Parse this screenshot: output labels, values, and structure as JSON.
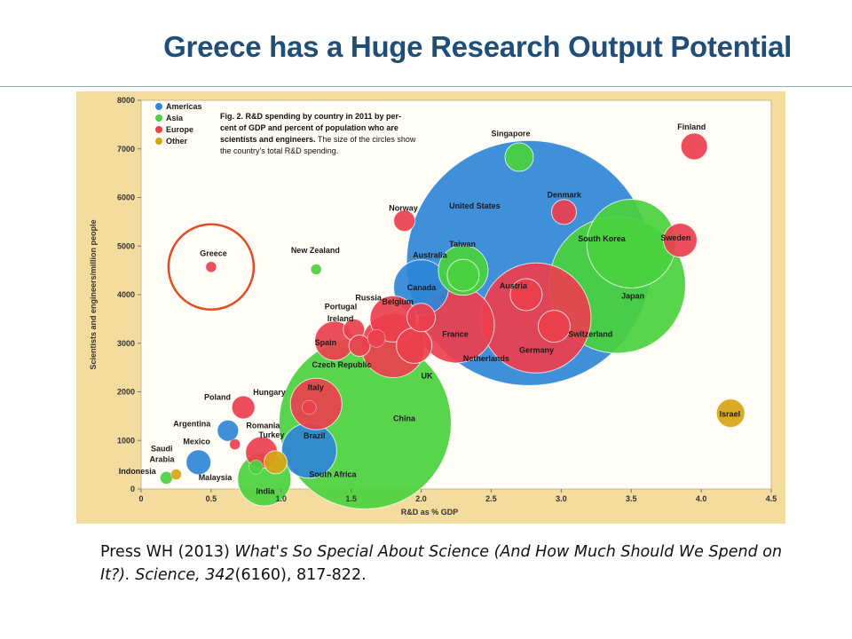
{
  "slide": {
    "title": "Greece has a Huge Research Output Potential"
  },
  "citation": {
    "authors": "Press WH (2013) ",
    "title_line1": "What's So Special About Science (And How Much Should We Spend on",
    "title_line2": "It?). Science, ",
    "volume": "342",
    "rest": "(6160), 817-822."
  },
  "colors": {
    "Americas": "#2f86d6",
    "Asia": "#4ad13e",
    "Europe": "#eb3f4d",
    "Other": "#d8a412",
    "highlight": "#e34b22"
  },
  "chart_data": {
    "type": "scatter",
    "note": {
      "line1_bold": "Fig. 2. R&D spending by country in 2011 by per-",
      "line2_bold": "cent of GDP and percent of population who are",
      "line3_bold": "scientists and engineers.",
      "line3_rest": " The size of the circles show",
      "line4": "the country's total R&D spending."
    },
    "xlabel": "R&D as % GDP",
    "ylabel": "Scientists and engineers/million people",
    "xlim": [
      0,
      4.5
    ],
    "ylim": [
      0,
      8000
    ],
    "xticks": [
      "0",
      "0.5",
      "1.0",
      "1.5",
      "2.0",
      "2.5",
      "3.0",
      "3.5",
      "4.0",
      "4.5"
    ],
    "yticks": [
      "0",
      "1000",
      "2000",
      "3000",
      "4000",
      "5000",
      "6000",
      "7000",
      "8000"
    ],
    "legend_position": "top-left",
    "legend": [
      "Americas",
      "Asia",
      "Europe",
      "Other"
    ],
    "highlight": {
      "label": "Greece",
      "x": 0.5,
      "y": 4570
    },
    "points": [
      {
        "name": "United States",
        "region": "Americas",
        "x": 2.77,
        "y": 4650,
        "size": 138
      },
      {
        "name": "China",
        "region": "Asia",
        "x": 1.6,
        "y": 1360,
        "size": 97
      },
      {
        "name": "Japan",
        "region": "Asia",
        "x": 3.4,
        "y": 4200,
        "size": 77
      },
      {
        "name": "Germany",
        "region": "Europe",
        "x": 2.82,
        "y": 3520,
        "size": 62
      },
      {
        "name": "South Korea",
        "region": "Asia",
        "x": 3.5,
        "y": 5050,
        "size": 50
      },
      {
        "name": "France",
        "region": "Europe",
        "x": 2.25,
        "y": 3380,
        "size": 43
      },
      {
        "name": "UK",
        "region": "Europe",
        "x": 1.8,
        "y": 2950,
        "size": 36
      },
      {
        "name": "Canada",
        "region": "Americas",
        "x": 2.0,
        "y": 4150,
        "size": 31
      },
      {
        "name": "Brazil",
        "region": "Americas",
        "x": 1.2,
        "y": 790,
        "size": 31
      },
      {
        "name": "India",
        "region": "Asia",
        "x": 0.88,
        "y": 200,
        "size": 30
      },
      {
        "name": "Taiwan",
        "region": "Asia",
        "x": 2.3,
        "y": 4500,
        "size": 28
      },
      {
        "name": "Italy",
        "region": "Europe",
        "x": 1.25,
        "y": 1750,
        "size": 29
      },
      {
        "name": "Spain",
        "region": "Europe",
        "x": 1.38,
        "y": 3050,
        "size": 22
      },
      {
        "name": "Netherlands",
        "region": "Europe",
        "x": 1.95,
        "y": 2950,
        "size": 20
      },
      {
        "name": "Russia",
        "region": "Europe",
        "x": 1.8,
        "y": 3500,
        "size": 26
      },
      {
        "name": "Sweden",
        "region": "Europe",
        "x": 3.85,
        "y": 5120,
        "size": 19
      },
      {
        "name": "Switzerland",
        "region": "Europe",
        "x": 2.95,
        "y": 3350,
        "size": 18
      },
      {
        "name": "Australia",
        "region": "Asia",
        "x": 2.3,
        "y": 4400,
        "size": 18
      },
      {
        "name": "Austria",
        "region": "Europe",
        "x": 2.75,
        "y": 4000,
        "size": 18
      },
      {
        "name": "Belgium",
        "region": "Europe",
        "x": 2.0,
        "y": 3530,
        "size": 16
      },
      {
        "name": "Israel",
        "region": "Other",
        "x": 4.21,
        "y": 1560,
        "size": 16
      },
      {
        "name": "Denmark",
        "region": "Europe",
        "x": 3.02,
        "y": 5700,
        "size": 14
      },
      {
        "name": "Finland",
        "region": "Europe",
        "x": 3.95,
        "y": 7050,
        "size": 15
      },
      {
        "name": "Turkey",
        "region": "Europe",
        "x": 0.86,
        "y": 750,
        "size": 18
      },
      {
        "name": "South Africa",
        "region": "Other",
        "x": 0.96,
        "y": 550,
        "size": 13
      },
      {
        "name": "Poland",
        "region": "Europe",
        "x": 0.73,
        "y": 1680,
        "size": 13
      },
      {
        "name": "Mexico",
        "region": "Americas",
        "x": 0.41,
        "y": 550,
        "size": 14
      },
      {
        "name": "Singapore",
        "region": "Asia",
        "x": 2.7,
        "y": 6830,
        "size": 16
      },
      {
        "name": "Norway",
        "region": "Europe",
        "x": 1.88,
        "y": 5520,
        "size": 12
      },
      {
        "name": "Portugal",
        "region": "Europe",
        "x": 1.52,
        "y": 3280,
        "size": 12
      },
      {
        "name": "Czech Republic",
        "region": "Europe",
        "x": 1.56,
        "y": 2950,
        "size": 12
      },
      {
        "name": "Argentina",
        "region": "Americas",
        "x": 0.62,
        "y": 1200,
        "size": 12
      },
      {
        "name": "Ireland",
        "region": "Europe",
        "x": 1.68,
        "y": 3100,
        "size": 10
      },
      {
        "name": "Hungary",
        "region": "Europe",
        "x": 1.2,
        "y": 1680,
        "size": 8
      },
      {
        "name": "Malaysia",
        "region": "Asia",
        "x": 0.82,
        "y": 450,
        "size": 8
      },
      {
        "name": "Romania",
        "region": "Europe",
        "x": 0.67,
        "y": 920,
        "size": 6
      },
      {
        "name": "New Zealand",
        "region": "Asia",
        "x": 1.25,
        "y": 4520,
        "size": 6
      },
      {
        "name": "Greece",
        "region": "Europe",
        "x": 0.5,
        "y": 4570,
        "size": 6
      },
      {
        "name": "Saudi Arabia",
        "region": "Other",
        "x": 0.25,
        "y": 300,
        "size": 6
      },
      {
        "name": "Indonesia",
        "region": "Asia",
        "x": 0.18,
        "y": 230,
        "size": 7
      }
    ],
    "labels": [
      {
        "text": "United States",
        "x": 2.2,
        "y": 5770
      },
      {
        "text": "China",
        "x": 1.8,
        "y": 1400
      },
      {
        "text": "Japan",
        "x": 3.43,
        "y": 3920
      },
      {
        "text": "Germany",
        "x": 2.7,
        "y": 2800
      },
      {
        "text": "South Korea",
        "x": 3.12,
        "y": 5100
      },
      {
        "text": "France",
        "x": 2.15,
        "y": 3130
      },
      {
        "text": "UK",
        "x": 2.0,
        "y": 2270
      },
      {
        "text": "Canada",
        "x": 1.9,
        "y": 4090
      },
      {
        "text": "Brazil",
        "x": 1.16,
        "y": 1040
      },
      {
        "text": "India",
        "x": 0.82,
        "y": -100
      },
      {
        "text": "Taiwan",
        "x": 2.2,
        "y": 4990
      },
      {
        "text": "Italy",
        "x": 1.19,
        "y": 2040
      },
      {
        "text": "Spain",
        "x": 1.24,
        "y": 2960
      },
      {
        "text": "Netherlands",
        "x": 2.3,
        "y": 2630
      },
      {
        "text": "Russia",
        "x": 1.53,
        "y": 3880
      },
      {
        "text": "Sweden",
        "x": 3.71,
        "y": 5110
      },
      {
        "text": "Switzerland",
        "x": 3.05,
        "y": 3130
      },
      {
        "text": "Australia",
        "x": 1.94,
        "y": 4760
      },
      {
        "text": "Austria",
        "x": 2.56,
        "y": 4130
      },
      {
        "text": "Belgium",
        "x": 1.72,
        "y": 3800
      },
      {
        "text": "Israel",
        "x": 4.13,
        "y": 1490
      },
      {
        "text": "Denmark",
        "x": 2.9,
        "y": 6000
      },
      {
        "text": "Finland",
        "x": 3.83,
        "y": 7400
      },
      {
        "text": "Turkey",
        "x": 0.84,
        "y": 1060
      },
      {
        "text": "South Africa",
        "x": 1.2,
        "y": 250
      },
      {
        "text": "Poland",
        "x": 0.45,
        "y": 1840
      },
      {
        "text": "Mexico",
        "x": 0.3,
        "y": 920
      },
      {
        "text": "Singapore",
        "x": 2.5,
        "y": 7260
      },
      {
        "text": "Norway",
        "x": 1.77,
        "y": 5730
      },
      {
        "text": "Portugal",
        "x": 1.31,
        "y": 3700
      },
      {
        "text": "Czech Republic",
        "x": 1.22,
        "y": 2500
      },
      {
        "text": "Argentina",
        "x": 0.23,
        "y": 1290
      },
      {
        "text": "Ireland",
        "x": 1.33,
        "y": 3450
      },
      {
        "text": "Hungary",
        "x": 0.8,
        "y": 1940
      },
      {
        "text": "Malaysia",
        "x": 0.41,
        "y": 180
      },
      {
        "text": "Romania",
        "x": 0.75,
        "y": 1250
      },
      {
        "text": "New Zealand",
        "x": 1.07,
        "y": 4860
      },
      {
        "text": "Greece",
        "x": 0.42,
        "y": 4790
      },
      {
        "text": "Saudi",
        "x": 0.07,
        "y": 780
      },
      {
        "text": "Arabia",
        "x": 0.06,
        "y": 560
      },
      {
        "text": "Indonesia",
        "x": -0.16,
        "y": 310
      }
    ]
  }
}
